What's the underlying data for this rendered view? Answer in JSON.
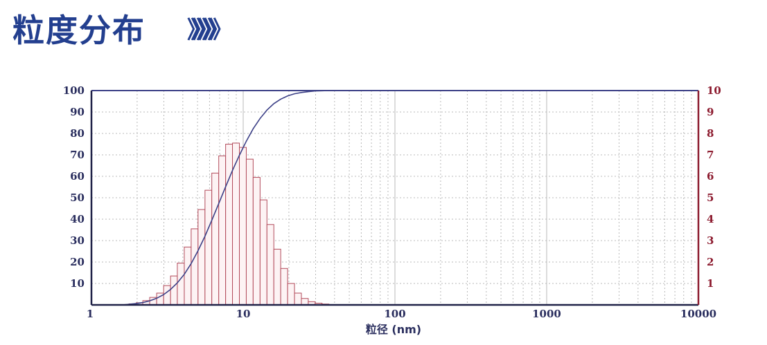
{
  "header": {
    "title": "粒度分布",
    "arrows": "》》》》》"
  },
  "colors": {
    "title": "#233f8f",
    "bars": "#b24a5a",
    "cumulative_line": "#3b3f86",
    "left_axis": "#2a2e5e",
    "right_axis": "#8c1a2e",
    "grid": "#b9b9b9"
  },
  "chart_data": {
    "type": "bar",
    "title": "",
    "xlabel": "粒径 (nm)",
    "ylabel": "",
    "x_scale": "log",
    "xlim": [
      1,
      10000
    ],
    "x_ticks": [
      "1",
      "10",
      "100",
      "1000",
      "10000"
    ],
    "y_left": {
      "ylim": [
        0,
        100
      ],
      "ticks": [
        "10",
        "20",
        "30",
        "40",
        "50",
        "60",
        "70",
        "80",
        "90",
        "100"
      ]
    },
    "y_right": {
      "ylim": [
        0,
        10
      ],
      "ticks": [
        "1",
        "2",
        "3",
        "4",
        "5",
        "6",
        "7",
        "8",
        "9",
        "10"
      ]
    },
    "grid": true,
    "legend": "none",
    "series": [
      {
        "type": "bar",
        "axis": "right",
        "x": [
          1.77,
          1.97,
          2.18,
          2.42,
          2.69,
          2.99,
          3.32,
          3.68,
          4.09,
          4.54,
          5.04,
          5.6,
          6.21,
          6.9,
          7.66,
          8.5,
          9.44,
          10.48,
          11.63,
          12.92,
          14.34,
          15.92,
          17.67,
          19.62,
          21.78,
          24.18,
          26.84,
          29.8,
          33.08
        ],
        "values": [
          0.05,
          0.1,
          0.2,
          0.35,
          0.55,
          0.9,
          1.35,
          1.95,
          2.7,
          3.55,
          4.45,
          5.35,
          6.15,
          6.95,
          7.5,
          7.55,
          7.35,
          6.8,
          5.95,
          4.9,
          3.75,
          2.6,
          1.7,
          1.0,
          0.55,
          0.3,
          0.15,
          0.08,
          0.04
        ]
      },
      {
        "type": "line",
        "axis": "left",
        "x": [
          1.6,
          1.77,
          1.97,
          2.18,
          2.42,
          2.69,
          2.99,
          3.32,
          3.68,
          4.09,
          4.54,
          5.04,
          5.6,
          6.21,
          6.9,
          7.66,
          8.5,
          9.44,
          10.48,
          11.63,
          12.92,
          14.34,
          15.92,
          17.67,
          19.62,
          21.78,
          24.18,
          26.84,
          29.8,
          33.08,
          36.7
        ],
        "values": [
          0,
          0.3,
          0.6,
          1.1,
          1.9,
          3.1,
          4.8,
          7.2,
          10.3,
          14.3,
          19.3,
          25.3,
          32.1,
          39.5,
          47.3,
          55.1,
          62.7,
          69.8,
          76.4,
          82.2,
          87.0,
          90.9,
          93.9,
          96.0,
          97.5,
          98.5,
          99.1,
          99.5,
          99.8,
          99.9,
          100
        ]
      }
    ]
  }
}
